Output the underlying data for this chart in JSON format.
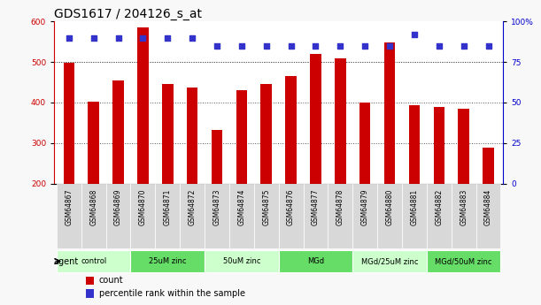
{
  "title": "GDS1617 / 204126_s_at",
  "samples": [
    "GSM64867",
    "GSM64868",
    "GSM64869",
    "GSM64870",
    "GSM64871",
    "GSM64872",
    "GSM64873",
    "GSM64874",
    "GSM64875",
    "GSM64876",
    "GSM64877",
    "GSM64878",
    "GSM64879",
    "GSM64880",
    "GSM64881",
    "GSM64882",
    "GSM64883",
    "GSM64884"
  ],
  "counts": [
    499,
    403,
    455,
    584,
    445,
    438,
    333,
    430,
    446,
    465,
    520,
    508,
    399,
    548,
    393,
    389,
    385,
    290
  ],
  "percentile_ranks": [
    90,
    90,
    90,
    90,
    90,
    90,
    85,
    85,
    85,
    85,
    85,
    85,
    85,
    85,
    92,
    85,
    85,
    85
  ],
  "bar_color": "#cc0000",
  "dot_color": "#3333cc",
  "ylim_left": [
    200,
    600
  ],
  "ylim_right": [
    0,
    100
  ],
  "yticks_left": [
    200,
    300,
    400,
    500,
    600
  ],
  "yticks_right": [
    0,
    25,
    50,
    75,
    100
  ],
  "groups": [
    {
      "label": "control",
      "start": 0,
      "end": 3,
      "color": "#ccffcc"
    },
    {
      "label": "25uM zinc",
      "start": 3,
      "end": 6,
      "color": "#66dd66"
    },
    {
      "label": "50uM zinc",
      "start": 6,
      "end": 9,
      "color": "#ccffcc"
    },
    {
      "label": "MGd",
      "start": 9,
      "end": 12,
      "color": "#66dd66"
    },
    {
      "label": "MGd/25uM zinc",
      "start": 12,
      "end": 15,
      "color": "#ccffcc"
    },
    {
      "label": "MGd/50uM zinc",
      "start": 15,
      "end": 18,
      "color": "#66dd66"
    }
  ],
  "agent_label": "agent",
  "legend_count_label": "count",
  "legend_pct_label": "percentile rank within the sample",
  "plot_bg": "#ffffff",
  "xticklabel_bg": "#d8d8d8",
  "fig_bg": "#f8f8f8",
  "ticklabel_fontsize": 6.5,
  "title_fontsize": 10,
  "axis_color_left": "#cc0000",
  "axis_color_right": "#0000cc",
  "grid_color": "#555555",
  "dot_size": 15,
  "bar_width": 0.45
}
